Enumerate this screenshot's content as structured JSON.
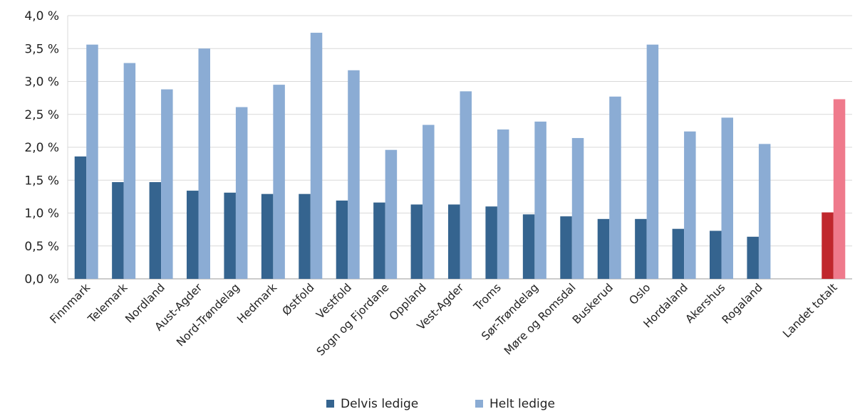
{
  "chart_data": {
    "type": "bar",
    "title": "",
    "xlabel": "",
    "ylabel": "",
    "ylim": [
      0,
      4.0
    ],
    "ytick_values": [
      0,
      0.5,
      1.0,
      1.5,
      2.0,
      2.5,
      3.0,
      3.5,
      4.0
    ],
    "ytick_labels": [
      "0,0 %",
      "0,5 %",
      "1,0 %",
      "1,5 %",
      "2,0 %",
      "2,5 %",
      "3,0 %",
      "3,5 %",
      "4,0 %"
    ],
    "grid": true,
    "legend_position": "bottom-center",
    "categories": [
      "Finnmark",
      "Telemark",
      "Nordland",
      "Aust-Agder",
      "Nord-Trøndelag",
      "Hedmark",
      "Østfold",
      "Vestfold",
      "Sogn og Fjordane",
      "Oppland",
      "Vest-Agder",
      "Troms",
      "Sør-Trøndelag",
      "Møre og Romsdal",
      "Buskerud",
      "Oslo",
      "Hordaland",
      "Akershus",
      "Rogaland",
      "",
      "Landet totalt"
    ],
    "series": [
      {
        "name": "Delvis ledige",
        "color": "#35648f",
        "highlight_color": "#c0272d",
        "values": [
          1.86,
          1.47,
          1.47,
          1.34,
          1.31,
          1.29,
          1.29,
          1.19,
          1.16,
          1.13,
          1.13,
          1.1,
          0.98,
          0.95,
          0.91,
          0.91,
          0.76,
          0.73,
          0.64,
          null,
          1.01
        ]
      },
      {
        "name": "Helt ledige",
        "color": "#8bacd4",
        "highlight_color": "#ef7a8c",
        "values": [
          3.56,
          3.28,
          2.88,
          3.5,
          2.61,
          2.95,
          3.74,
          3.17,
          1.96,
          2.34,
          2.85,
          2.27,
          2.39,
          2.14,
          2.77,
          3.56,
          2.24,
          2.45,
          2.05,
          null,
          2.73
        ]
      }
    ],
    "highlight_category": "Landet totalt"
  }
}
